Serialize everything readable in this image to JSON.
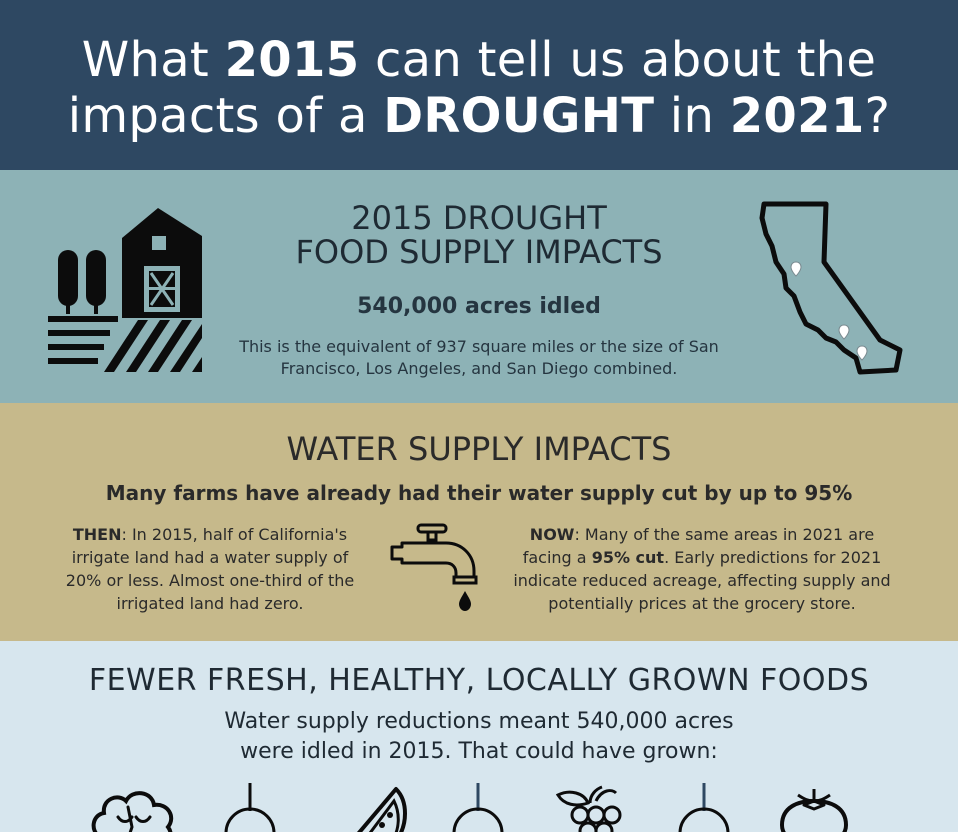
{
  "header": {
    "title_part1": "What ",
    "title_bold1": "2015",
    "title_part2": " can tell us about the",
    "title_part3": "impacts of a ",
    "title_bold2": "DROUGHT",
    "title_part4": " in ",
    "title_bold3": "2021",
    "title_part5": "?"
  },
  "food_supply": {
    "heading_line1": "2015 DROUGHT",
    "heading_line2": "FOOD SUPPLY IMPACTS",
    "acres": "540,000 acres idled",
    "description": "This is the equivalent of 937 square miles or the size of San Francisco, Los Angeles, and San Diego combined.",
    "farm_icon": "barn-farm-icon",
    "map_icon": "california-map-icon"
  },
  "water_supply": {
    "heading": "WATER SUPPLY IMPACTS",
    "subheading": "Many farms have already had their water supply cut by up to 95%",
    "then_label": "THEN",
    "then_text": ": In 2015, half of California's irrigate land had a water supply of 20% or less. Almost one-third of the irrigated land had zero.",
    "now_label": "NOW",
    "now_text_1": ": Many of the same areas in 2021 are facing a ",
    "now_bold": "95% cut",
    "now_text_2": ". Early predictions for 2021 indicate reduced acreage, affecting supply and potentially prices at the grocery store.",
    "faucet_icon": "faucet-icon"
  },
  "fresh_foods": {
    "heading": "FEWER FRESH, HEALTHY, LOCALLY GROWN FOODS",
    "sub_line1": "Water supply reductions meant 540,000 acres",
    "sub_line2": "were idled in 2015. That could have grown:",
    "icons": [
      "broccoli-icon",
      "watermelon-icon",
      "grapes-icon",
      "tomato-icon"
    ]
  },
  "colors": {
    "header_bg": "#2e4862",
    "food_bg": "#8db2b6",
    "water_bg": "#c6b98b",
    "fresh_bg": "#d7e6ee"
  }
}
